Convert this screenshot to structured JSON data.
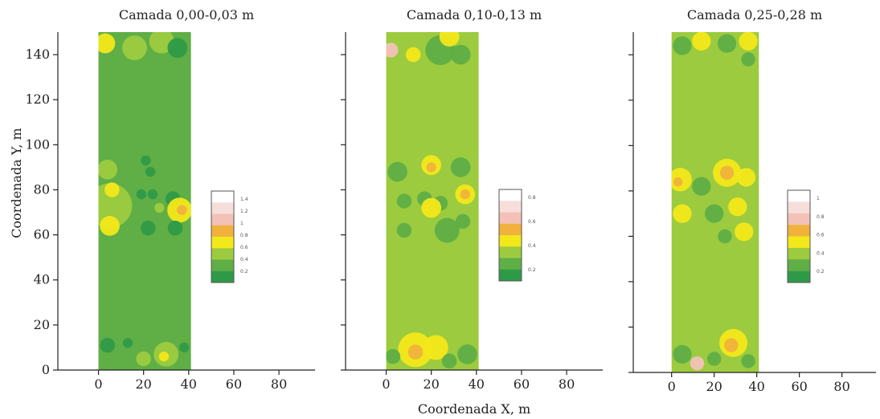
{
  "figure": {
    "xlabel": "Coordenada X, m",
    "ylabel": "Coordenada Y, m"
  },
  "colors": {
    "base_low": "#5fae46",
    "base_mid": "#9ccb3f",
    "dark": "#2e9a48",
    "yellow": "#f3e81a",
    "orange": "#f0b23c",
    "pink": "#f3c1b8"
  },
  "chart_data": [
    {
      "type": "heatmap",
      "title": "Camada 0,00-0,03 m",
      "xlabel": "",
      "ylabel": "Coordenada Y, m",
      "xlim": [
        -18,
        96
      ],
      "ylim": [
        0,
        150
      ],
      "xticks": [
        "0",
        "20",
        "40",
        "60",
        "80"
      ],
      "yticks": [
        "0",
        "20",
        "40",
        "60",
        "80",
        "100",
        "120",
        "140"
      ],
      "field_x": [
        0,
        41
      ],
      "field_y": [
        0,
        150
      ],
      "base_class": "low",
      "legend_labels": [
        "1.4",
        "1.2",
        "1",
        "0.8",
        "0.6",
        "0.4",
        "0.2"
      ],
      "legend_colors": [
        "#ffffff",
        "#f6dedb",
        "#f3c1b8",
        "#f0b23c",
        "#f3e81a",
        "#9ccb3f",
        "#5fae46",
        "#2e9a48"
      ],
      "spots": [
        {
          "x": 3,
          "y": 145,
          "r": 4,
          "c": "yellow"
        },
        {
          "x": 16,
          "y": 143,
          "r": 5,
          "c": "base_mid"
        },
        {
          "x": 28,
          "y": 146,
          "r": 5,
          "c": "base_mid"
        },
        {
          "x": 35,
          "y": 143,
          "r": 4,
          "c": "dark"
        },
        {
          "x": 4,
          "y": 89,
          "r": 4,
          "c": "base_mid"
        },
        {
          "x": 21,
          "y": 93,
          "r": 2,
          "c": "dark"
        },
        {
          "x": 23,
          "y": 88,
          "r": 2,
          "c": "dark"
        },
        {
          "x": 5,
          "y": 73,
          "r": 9,
          "c": "base_mid"
        },
        {
          "x": 5,
          "y": 64,
          "r": 4,
          "c": "yellow"
        },
        {
          "x": 6,
          "y": 80,
          "r": 3,
          "c": "yellow"
        },
        {
          "x": 19,
          "y": 78,
          "r": 2,
          "c": "dark"
        },
        {
          "x": 24,
          "y": 78,
          "r": 2,
          "c": "dark"
        },
        {
          "x": 22,
          "y": 63,
          "r": 3,
          "c": "dark"
        },
        {
          "x": 33,
          "y": 76,
          "r": 3,
          "c": "dark"
        },
        {
          "x": 36,
          "y": 71,
          "r": 5,
          "c": "yellow"
        },
        {
          "x": 37,
          "y": 71,
          "r": 2,
          "c": "orange"
        },
        {
          "x": 34,
          "y": 63,
          "r": 3,
          "c": "dark"
        },
        {
          "x": 27,
          "y": 72,
          "r": 2,
          "c": "base_mid"
        },
        {
          "x": 4,
          "y": 11,
          "r": 3,
          "c": "dark"
        },
        {
          "x": 13,
          "y": 12,
          "r": 2,
          "c": "dark"
        },
        {
          "x": 30,
          "y": 7,
          "r": 5,
          "c": "base_mid"
        },
        {
          "x": 29,
          "y": 6,
          "r": 2,
          "c": "yellow"
        },
        {
          "x": 20,
          "y": 5,
          "r": 3,
          "c": "base_mid"
        },
        {
          "x": 38,
          "y": 10,
          "r": 2,
          "c": "dark"
        }
      ]
    },
    {
      "type": "heatmap",
      "title": "Camada 0,10-0,13 m",
      "xlabel": "Coordenada X, m",
      "ylabel": "",
      "xlim": [
        -18,
        96
      ],
      "ylim": [
        0,
        150
      ],
      "xticks": [
        "0",
        "20",
        "40",
        "60",
        "80"
      ],
      "yticks": [
        "0",
        "20",
        "40",
        "60",
        "80",
        "100",
        "120",
        "140"
      ],
      "field_x": [
        0,
        41
      ],
      "field_y": [
        0,
        150
      ],
      "base_class": "mid",
      "legend_labels": [
        "0.8",
        "0.6",
        "0.4",
        "0.2"
      ],
      "legend_colors": [
        "#ffffff",
        "#f6dedb",
        "#f3c1b8",
        "#f0b23c",
        "#f3e81a",
        "#9ccb3f",
        "#5fae46",
        "#2e9a48"
      ],
      "spots": [
        {
          "x": 2,
          "y": 142,
          "r": 3,
          "c": "pink"
        },
        {
          "x": 12,
          "y": 140,
          "r": 3,
          "c": "yellow"
        },
        {
          "x": 24,
          "y": 142,
          "r": 6,
          "c": "base_low"
        },
        {
          "x": 33,
          "y": 140,
          "r": 4,
          "c": "base_low"
        },
        {
          "x": 28,
          "y": 148,
          "r": 4,
          "c": "yellow"
        },
        {
          "x": 5,
          "y": 88,
          "r": 4,
          "c": "base_low"
        },
        {
          "x": 20,
          "y": 91,
          "r": 4,
          "c": "yellow"
        },
        {
          "x": 20,
          "y": 90,
          "r": 2,
          "c": "orange"
        },
        {
          "x": 33,
          "y": 90,
          "r": 4,
          "c": "base_low"
        },
        {
          "x": 8,
          "y": 75,
          "r": 3,
          "c": "base_low"
        },
        {
          "x": 17,
          "y": 76,
          "r": 3,
          "c": "base_low"
        },
        {
          "x": 24,
          "y": 74,
          "r": 3,
          "c": "base_low"
        },
        {
          "x": 35,
          "y": 78,
          "r": 4,
          "c": "yellow"
        },
        {
          "x": 35,
          "y": 78,
          "r": 2,
          "c": "orange"
        },
        {
          "x": 20,
          "y": 72,
          "r": 4,
          "c": "yellow"
        },
        {
          "x": 27,
          "y": 62,
          "r": 5,
          "c": "base_low"
        },
        {
          "x": 8,
          "y": 62,
          "r": 3,
          "c": "base_low"
        },
        {
          "x": 34,
          "y": 66,
          "r": 3,
          "c": "base_low"
        },
        {
          "x": 13,
          "y": 9,
          "r": 7,
          "c": "yellow"
        },
        {
          "x": 13,
          "y": 8,
          "r": 3,
          "c": "orange"
        },
        {
          "x": 22,
          "y": 10,
          "r": 5,
          "c": "yellow"
        },
        {
          "x": 3,
          "y": 6,
          "r": 3,
          "c": "base_low"
        },
        {
          "x": 36,
          "y": 7,
          "r": 4,
          "c": "base_low"
        },
        {
          "x": 28,
          "y": 4,
          "r": 3,
          "c": "base_low"
        }
      ]
    },
    {
      "type": "heatmap",
      "title": "Camada 0,25-0,28 m",
      "xlabel": "",
      "ylabel": "",
      "xlim": [
        -18,
        96
      ],
      "ylim": [
        0,
        150
      ],
      "xticks": [
        "0",
        "20",
        "40",
        "60",
        "80"
      ],
      "yticks": [
        "0",
        "20",
        "40",
        "60",
        "80",
        "100",
        "120",
        "140"
      ],
      "field_x": [
        0,
        41
      ],
      "field_y": [
        0,
        150
      ],
      "base_class": "mid",
      "legend_labels": [
        "1",
        "0.8",
        "0.6",
        "0.4",
        "0.2"
      ],
      "legend_colors": [
        "#ffffff",
        "#f6dedb",
        "#f3c1b8",
        "#f0b23c",
        "#f3e81a",
        "#9ccb3f",
        "#5fae46",
        "#2e9a48"
      ],
      "spots": [
        {
          "x": 5,
          "y": 144,
          "r": 4,
          "c": "base_low"
        },
        {
          "x": 14,
          "y": 146,
          "r": 4,
          "c": "yellow"
        },
        {
          "x": 26,
          "y": 145,
          "r": 4,
          "c": "base_low"
        },
        {
          "x": 36,
          "y": 146,
          "r": 4,
          "c": "yellow"
        },
        {
          "x": 36,
          "y": 138,
          "r": 3,
          "c": "base_low"
        },
        {
          "x": 4,
          "y": 85,
          "r": 5,
          "c": "yellow"
        },
        {
          "x": 3,
          "y": 84,
          "r": 2,
          "c": "orange"
        },
        {
          "x": 5,
          "y": 70,
          "r": 4,
          "c": "yellow"
        },
        {
          "x": 14,
          "y": 82,
          "r": 4,
          "c": "base_low"
        },
        {
          "x": 26,
          "y": 88,
          "r": 6,
          "c": "yellow"
        },
        {
          "x": 26,
          "y": 88,
          "r": 3,
          "c": "orange"
        },
        {
          "x": 35,
          "y": 86,
          "r": 4,
          "c": "yellow"
        },
        {
          "x": 20,
          "y": 70,
          "r": 4,
          "c": "base_low"
        },
        {
          "x": 31,
          "y": 73,
          "r": 4,
          "c": "yellow"
        },
        {
          "x": 34,
          "y": 62,
          "r": 4,
          "c": "yellow"
        },
        {
          "x": 25,
          "y": 60,
          "r": 3,
          "c": "base_low"
        },
        {
          "x": 5,
          "y": 8,
          "r": 4,
          "c": "base_low"
        },
        {
          "x": 12,
          "y": 4,
          "r": 3,
          "c": "pink"
        },
        {
          "x": 29,
          "y": 13,
          "r": 6,
          "c": "yellow"
        },
        {
          "x": 28,
          "y": 12,
          "r": 3,
          "c": "orange"
        },
        {
          "x": 20,
          "y": 6,
          "r": 3,
          "c": "base_low"
        },
        {
          "x": 36,
          "y": 5,
          "r": 3,
          "c": "base_low"
        }
      ]
    }
  ]
}
